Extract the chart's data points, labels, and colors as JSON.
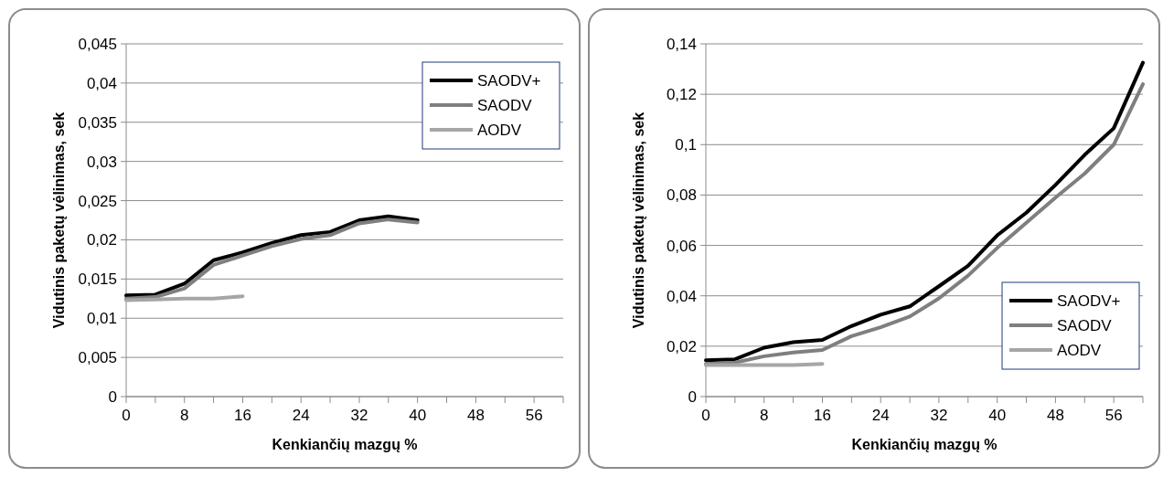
{
  "chart_data": [
    {
      "type": "line",
      "xlabel": "Kenkiančių mazgų %",
      "ylabel": "Vidutinis paketų vėlinimas, sek",
      "xlim": [
        0,
        60
      ],
      "xticks": [
        0,
        {
          "value": 4,
          "label": null
        },
        8,
        {
          "value": 12,
          "label": null
        },
        16,
        {
          "value": 20,
          "label": null
        },
        24,
        {
          "value": 28,
          "label": null
        },
        32,
        {
          "value": 36,
          "label": null
        },
        40,
        {
          "value": 44,
          "label": null
        },
        48,
        {
          "value": 52,
          "label": null
        },
        56,
        {
          "value": 60,
          "label": null
        }
      ],
      "ylim": [
        0,
        0.045
      ],
      "yticks": [
        {
          "value": 0,
          "label": "0"
        },
        {
          "value": 0.005,
          "label": "0,005"
        },
        {
          "value": 0.01,
          "label": "0,01"
        },
        {
          "value": 0.015,
          "label": "0,015"
        },
        {
          "value": 0.02,
          "label": "0,02"
        },
        {
          "value": 0.025,
          "label": "0,025"
        },
        {
          "value": 0.03,
          "label": "0,03"
        },
        {
          "value": 0.035,
          "label": "0,035"
        },
        {
          "value": 0.04,
          "label": "0,04"
        },
        {
          "value": 0.045,
          "label": "0,045"
        }
      ],
      "grid": "y",
      "legend": "top right",
      "marker": "none",
      "series": [
        {
          "name": "SAODV+",
          "color": "#000000",
          "x": [
            0,
            4,
            8,
            12,
            16,
            20,
            24,
            28,
            32,
            36,
            40
          ],
          "values": [
            0.0129,
            0.013,
            0.0144,
            0.0174,
            0.0184,
            0.0196,
            0.0206,
            0.021,
            0.0225,
            0.023,
            0.0225
          ]
        },
        {
          "name": "SAODV",
          "color": "#7f7f7f",
          "x": [
            0,
            4,
            8,
            12,
            16,
            20,
            24,
            28,
            32,
            36,
            40
          ],
          "values": [
            0.0125,
            0.0127,
            0.0138,
            0.0168,
            0.018,
            0.0192,
            0.0201,
            0.0206,
            0.0221,
            0.0226,
            0.0222
          ]
        },
        {
          "name": "AODV",
          "color": "#a6a6a6",
          "x": [
            0,
            4,
            8,
            12,
            16
          ],
          "values": [
            0.0123,
            0.0124,
            0.0125,
            0.0125,
            0.0128
          ]
        }
      ]
    },
    {
      "type": "line",
      "xlabel": "Kenkiančių mazgų %",
      "ylabel": "Vidutinis paketų vėlinimas, sek",
      "xlim": [
        0,
        60
      ],
      "xticks": [
        0,
        {
          "value": 4,
          "label": null
        },
        8,
        {
          "value": 12,
          "label": null
        },
        16,
        {
          "value": 20,
          "label": null
        },
        24,
        {
          "value": 28,
          "label": null
        },
        32,
        {
          "value": 36,
          "label": null
        },
        40,
        {
          "value": 44,
          "label": null
        },
        48,
        {
          "value": 52,
          "label": null
        },
        56,
        {
          "value": 60,
          "label": null
        }
      ],
      "ylim": [
        0,
        0.14
      ],
      "yticks": [
        {
          "value": 0,
          "label": "0"
        },
        {
          "value": 0.02,
          "label": "0,02"
        },
        {
          "value": 0.04,
          "label": "0,04"
        },
        {
          "value": 0.06,
          "label": "0,06"
        },
        {
          "value": 0.08,
          "label": "0,08"
        },
        {
          "value": 0.1,
          "label": "0,1"
        },
        {
          "value": 0.12,
          "label": "0,12"
        },
        {
          "value": 0.14,
          "label": "0,14"
        }
      ],
      "grid": "y",
      "legend": "bottom right",
      "marker": "none",
      "series": [
        {
          "name": "SAODV+",
          "color": "#000000",
          "x": [
            0,
            4,
            8,
            12,
            16,
            20,
            24,
            28,
            32,
            36,
            40,
            44,
            48,
            52,
            56,
            60
          ],
          "values": [
            0.0144,
            0.0148,
            0.0194,
            0.0216,
            0.0225,
            0.028,
            0.0325,
            0.0358,
            0.0438,
            0.0519,
            0.064,
            0.073,
            0.084,
            0.0959,
            0.1065,
            0.1325
          ]
        },
        {
          "name": "SAODV",
          "color": "#7f7f7f",
          "x": [
            0,
            4,
            8,
            12,
            16,
            20,
            24,
            28,
            32,
            36,
            40,
            44,
            48,
            52,
            56,
            60
          ],
          "values": [
            0.013,
            0.0135,
            0.016,
            0.0175,
            0.0185,
            0.024,
            0.0275,
            0.0318,
            0.039,
            0.048,
            0.059,
            0.069,
            0.079,
            0.0885,
            0.1,
            0.124
          ]
        },
        {
          "name": "AODV",
          "color": "#a6a6a6",
          "x": [
            0,
            4,
            8,
            12,
            16
          ],
          "values": [
            0.0125,
            0.0125,
            0.0125,
            0.0125,
            0.013
          ]
        }
      ]
    }
  ]
}
